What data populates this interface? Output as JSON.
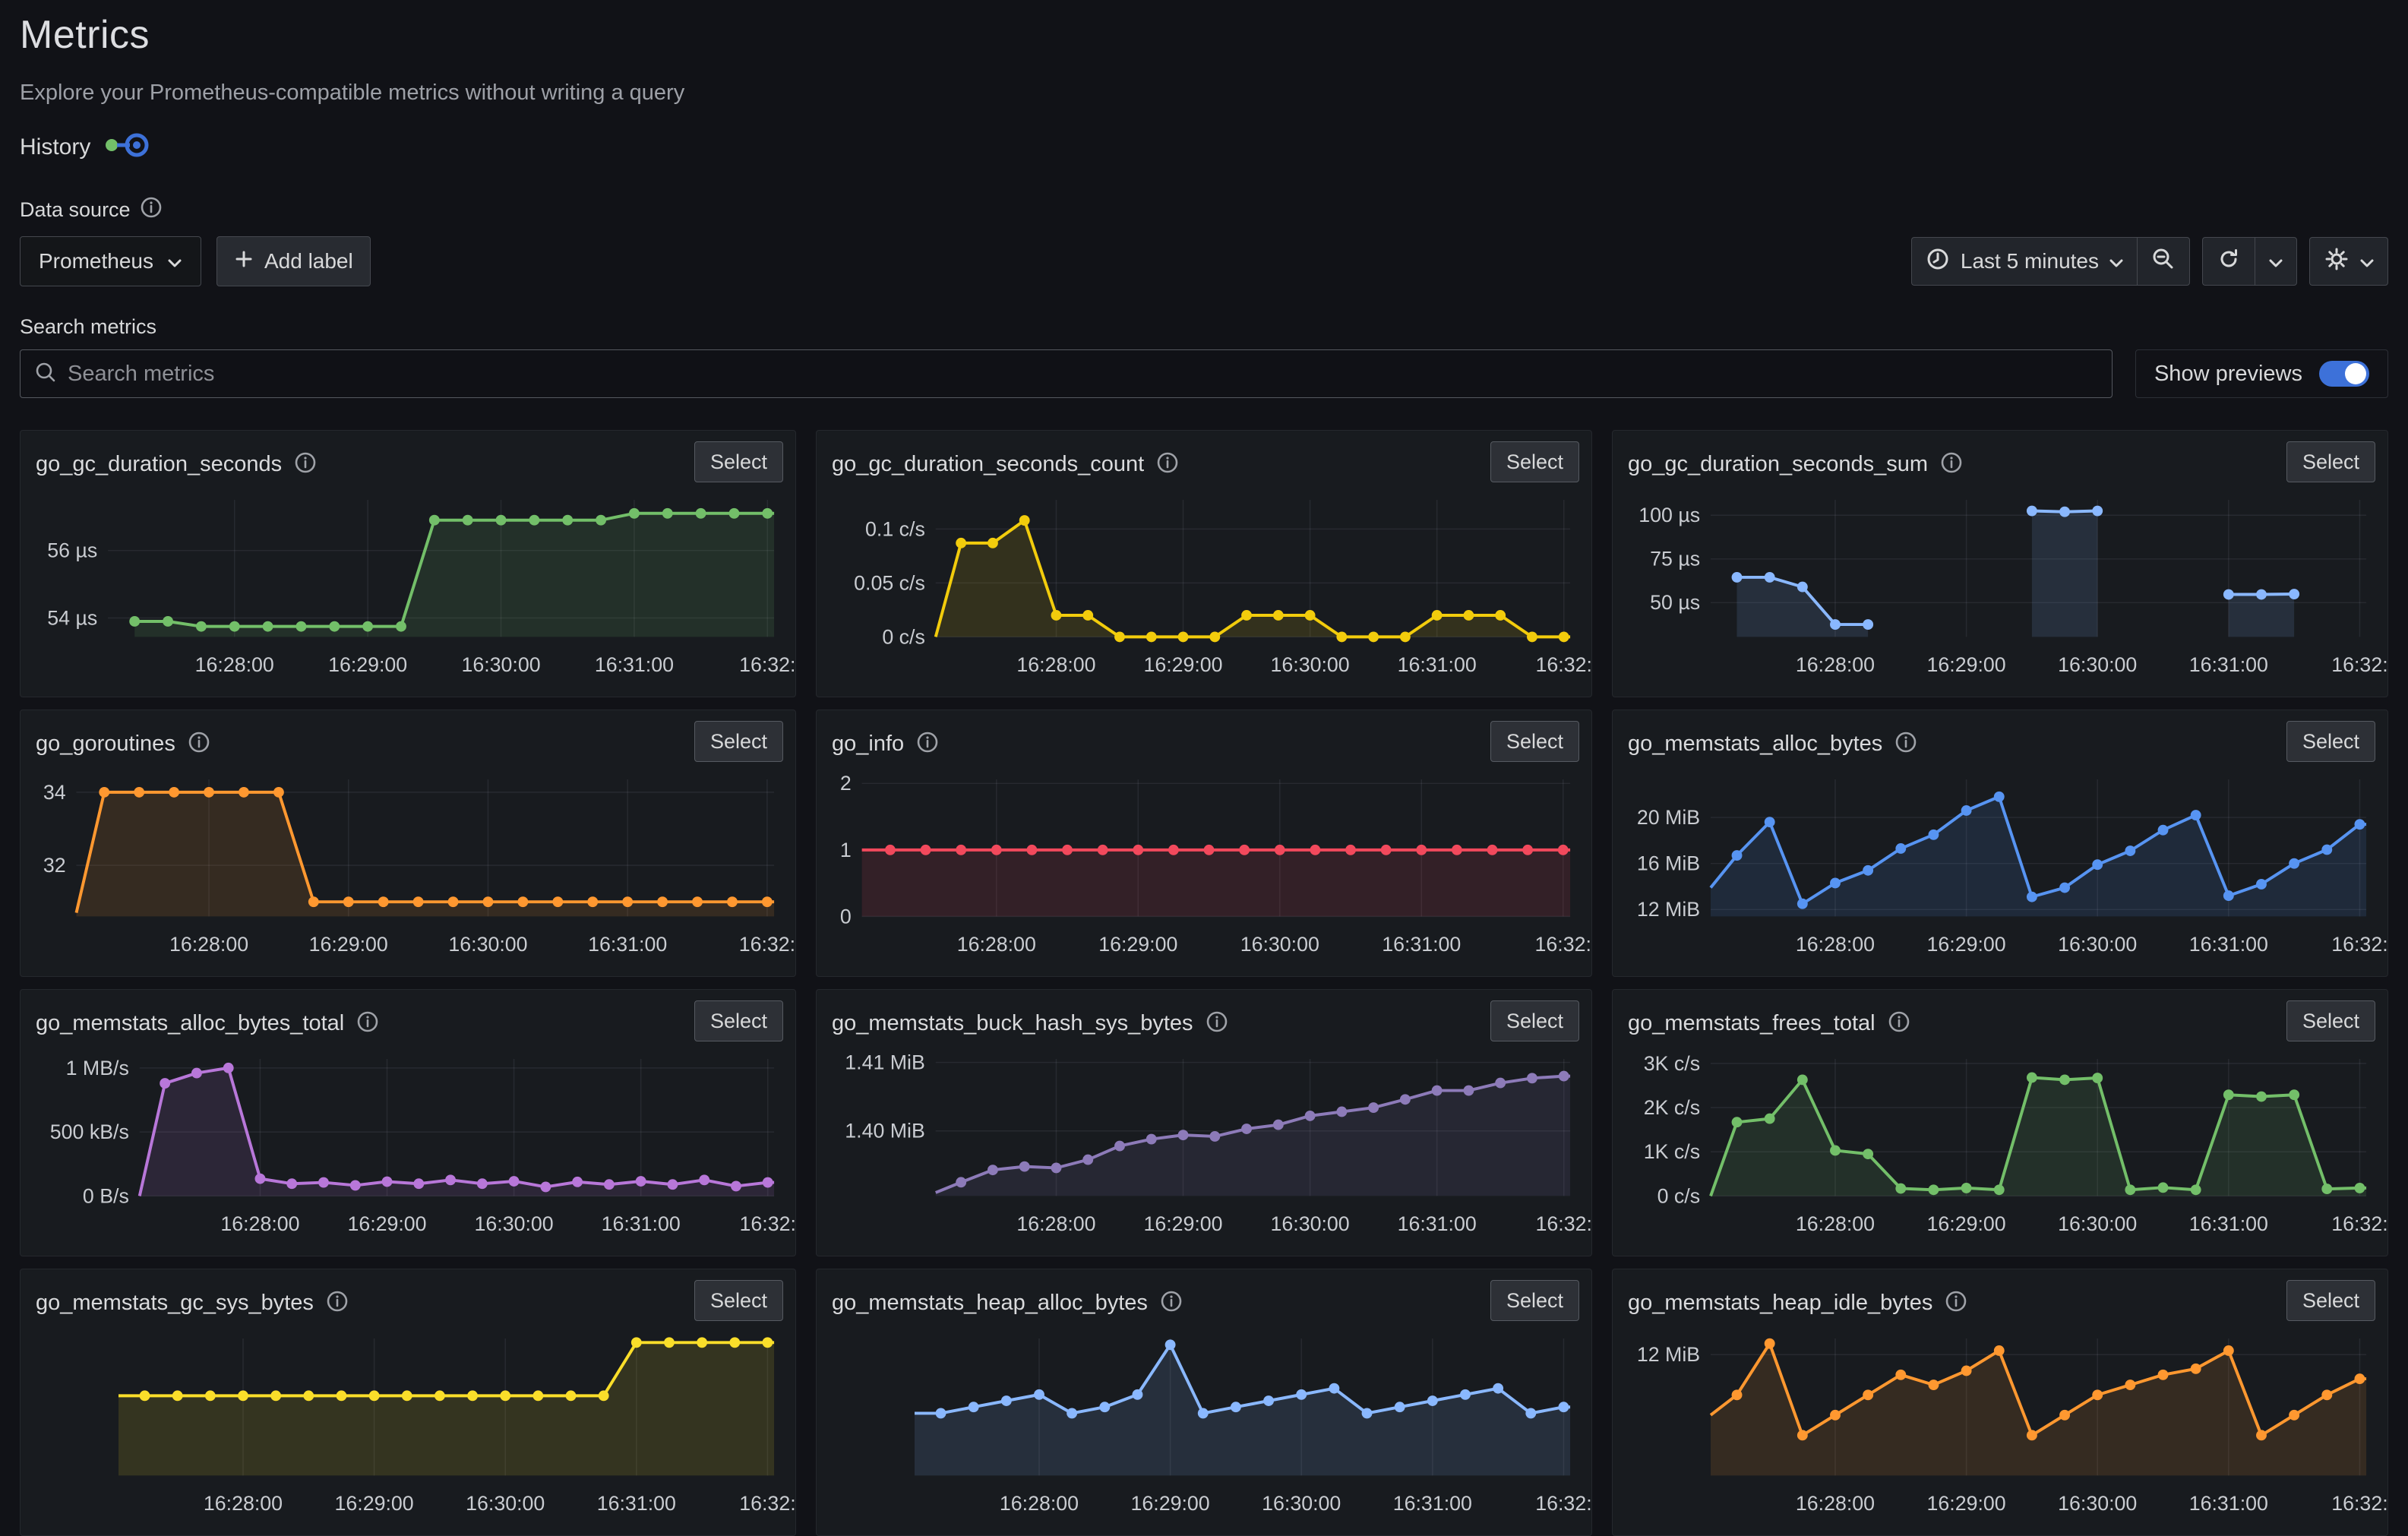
{
  "page": {
    "title": "Metrics",
    "subtitle": "Explore your Prometheus-compatible metrics without writing a query",
    "history_label": "History"
  },
  "toolbar": {
    "datasource_label": "Data source",
    "datasource_value": "Prometheus",
    "add_label_text": "Add label",
    "time_range": "Last 5 minutes"
  },
  "search": {
    "label": "Search metrics",
    "placeholder": "Search metrics",
    "show_previews_label": "Show previews"
  },
  "shared": {
    "select_label": "Select",
    "accent_blue": "#3d71d9"
  },
  "x_axis": {
    "fracs": [
      0.19,
      0.39,
      0.59,
      0.79,
      0.99
    ],
    "labels": [
      "16:28:00",
      "16:29:00",
      "16:30:00",
      "16:31:00",
      "16:32:"
    ]
  },
  "cards": [
    {
      "title": "go_gc_duration_seconds",
      "color": "#73bf69",
      "y_min": 53.44,
      "y_max": 57.5,
      "y_ticks": [
        {
          "v": 56,
          "label": "56 µs"
        },
        {
          "v": 54,
          "label": "54 µs"
        }
      ],
      "lead": null,
      "tail": 57.1,
      "values": [
        53.9,
        53.9,
        53.75,
        53.75,
        53.75,
        53.75,
        53.75,
        53.75,
        53.75,
        56.9,
        56.9,
        56.9,
        56.9,
        56.9,
        56.9,
        57.1,
        57.1,
        57.1,
        57.1,
        57.1
      ]
    },
    {
      "title": "go_gc_duration_seconds_count",
      "color": "#f2cc0c",
      "y_min": 0,
      "y_max": 0.127,
      "y_ticks": [
        {
          "v": 0.1,
          "label": "0.1 c/s"
        },
        {
          "v": 0.05,
          "label": "0.05 c/s"
        },
        {
          "v": 0,
          "label": "0 c/s"
        }
      ],
      "lead": 0,
      "tail": 0,
      "values": [
        0.087,
        0.087,
        0.108,
        0.02,
        0.02,
        0,
        0,
        0,
        0,
        0.02,
        0.02,
        0.02,
        0,
        0,
        0,
        0.02,
        0.02,
        0.02,
        0,
        0
      ]
    },
    {
      "title": "go_gc_duration_seconds_sum",
      "color": "#8ab8ff",
      "y_min": 30.4,
      "y_max": 108.8,
      "y_ticks": [
        {
          "v": 100,
          "label": "100 µs"
        },
        {
          "v": 75,
          "label": "75 µs"
        },
        {
          "v": 50,
          "label": "50 µs"
        }
      ],
      "lead": null,
      "tail": null,
      "values": [
        64.5,
        64.5,
        59,
        37.5,
        37.5,
        null,
        null,
        null,
        null,
        102.5,
        102,
        102.5,
        null,
        null,
        null,
        54.7,
        54.7,
        54.9,
        null,
        null
      ]
    },
    {
      "title": "go_goroutines",
      "color": "#ff9830",
      "y_min": 30.6,
      "y_max": 34.35,
      "y_ticks": [
        {
          "v": 34,
          "label": "34"
        },
        {
          "v": 32,
          "label": "32"
        }
      ],
      "lead": 30.7,
      "tail": 31,
      "values": [
        34,
        34,
        34,
        34,
        34,
        34,
        31,
        31,
        31,
        31,
        31,
        31,
        31,
        31,
        31,
        31,
        31,
        31,
        31,
        31
      ]
    },
    {
      "title": "go_info",
      "color": "#f2495c",
      "y_min": 0,
      "y_max": 2.06,
      "y_ticks": [
        {
          "v": 2,
          "label": "2"
        },
        {
          "v": 1,
          "label": "1"
        },
        {
          "v": 0,
          "label": "0"
        }
      ],
      "lead": 1,
      "tail": 1,
      "values": [
        1,
        1,
        1,
        1,
        1,
        1,
        1,
        1,
        1,
        1,
        1,
        1,
        1,
        1,
        1,
        1,
        1,
        1,
        1,
        1
      ]
    },
    {
      "title": "go_memstats_alloc_bytes",
      "color": "#5794f2",
      "y_min": 11.4,
      "y_max": 23.3,
      "y_ticks": [
        {
          "v": 20,
          "label": "20 MiB"
        },
        {
          "v": 16,
          "label": "16 MiB"
        },
        {
          "v": 12,
          "label": "12 MiB"
        }
      ],
      "lead": 13.9,
      "tail": 19.4,
      "values": [
        16.7,
        19.6,
        12.5,
        14.3,
        15.4,
        17.3,
        18.5,
        20.6,
        21.8,
        13.1,
        13.9,
        15.9,
        17.1,
        18.9,
        20.2,
        13.2,
        14.2,
        16.0,
        17.2,
        19.4
      ]
    },
    {
      "title": "go_memstats_alloc_bytes_total",
      "color": "#b877d9",
      "y_min": 0,
      "y_max": 1.07,
      "y_ticks": [
        {
          "v": 1,
          "label": "1 MB/s"
        },
        {
          "v": 0.5,
          "label": "500 kB/s"
        },
        {
          "v": 0,
          "label": "0 B/s"
        }
      ],
      "lead": 0,
      "tail": 0.106,
      "values": [
        0.88,
        0.96,
        1.0,
        0.135,
        0.096,
        0.106,
        0.083,
        0.112,
        0.096,
        0.125,
        0.096,
        0.115,
        0.071,
        0.11,
        0.09,
        0.115,
        0.09,
        0.125,
        0.077,
        0.106
      ]
    },
    {
      "title": "go_memstats_buck_hash_sys_bytes",
      "color": "#8d7bb9",
      "y_min": 1.3905,
      "y_max": 1.4105,
      "y_ticks": [
        {
          "v": 1.41,
          "label": "1.41 MiB"
        },
        {
          "v": 1.4,
          "label": "1.40 MiB"
        }
      ],
      "lead": 1.391,
      "tail": 1.408,
      "values": [
        1.3925,
        1.3943,
        1.3948,
        1.3946,
        1.3958,
        1.3978,
        1.3988,
        1.3994,
        1.3992,
        1.4003,
        1.4009,
        1.4022,
        1.4028,
        1.4034,
        1.4046,
        1.4059,
        1.4059,
        1.407,
        1.4077,
        1.408
      ]
    },
    {
      "title": "go_memstats_frees_total",
      "color": "#73bf69",
      "y_min": 0,
      "y_max": 3.1,
      "y_ticks": [
        {
          "v": 3,
          "label": "3K c/s"
        },
        {
          "v": 2,
          "label": "2K c/s"
        },
        {
          "v": 1,
          "label": "1K c/s"
        },
        {
          "v": 0,
          "label": "0 c/s"
        }
      ],
      "lead": 0,
      "tail": 0.18,
      "values": [
        1.67,
        1.75,
        2.63,
        1.03,
        0.95,
        0.17,
        0.14,
        0.18,
        0.14,
        2.68,
        2.63,
        2.67,
        0.14,
        0.19,
        0.14,
        2.29,
        2.25,
        2.29,
        0.16,
        0.18
      ]
    },
    {
      "title": "go_memstats_gc_sys_bytes",
      "color": "#fade2a",
      "y_min": 0,
      "y_max": 5.15,
      "pad": 6,
      "y_ticks": [],
      "lead": 3,
      "tail": 5,
      "values": [
        3,
        3,
        3,
        3,
        3,
        3,
        3,
        3,
        3,
        3,
        3,
        3,
        3,
        3,
        3,
        5,
        5,
        5,
        5,
        5
      ]
    },
    {
      "title": "go_memstats_heap_alloc_bytes",
      "color": "#8ab8ff",
      "y_min": 0,
      "y_max": 22,
      "pad": 6,
      "y_ticks": [],
      "lead": 10,
      "tail": 11,
      "values": [
        10,
        11,
        12,
        13,
        10,
        11,
        13,
        21,
        10,
        11,
        12,
        13,
        14,
        10,
        11,
        12,
        13,
        14,
        10,
        11
      ]
    },
    {
      "title": "go_memstats_heap_idle_bytes",
      "color": "#ff9830",
      "y_min": 6,
      "y_max": 12.8,
      "y_ticks": [
        {
          "v": 12,
          "label": "12 MiB"
        }
      ],
      "lead": 9,
      "tail": 10.8,
      "values": [
        10,
        12.55,
        8,
        9,
        10,
        11,
        10.5,
        11.2,
        12.2,
        8,
        9,
        10,
        10.5,
        11,
        11.3,
        12.2,
        8,
        9,
        10,
        10.8
      ]
    }
  ]
}
